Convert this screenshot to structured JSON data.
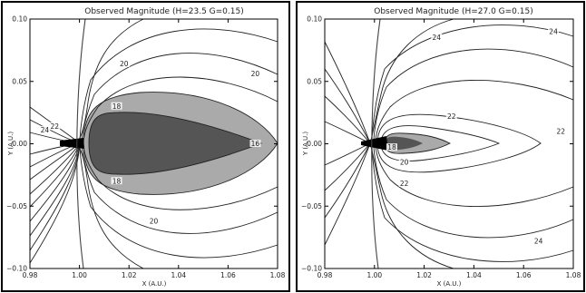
{
  "chart_data": [
    {
      "type": "contour",
      "title": "Observed Magnitude (H=23.5  G=0.15)",
      "xlabel": "X (A.U.)",
      "ylabel": "Y (A.U.)",
      "xlim": [
        0.98,
        1.08
      ],
      "ylim": [
        -0.1,
        0.1
      ],
      "x_ticks": [
        "0.98",
        "1.00",
        "1.02",
        "1.04",
        "1.06",
        "1.08"
      ],
      "y_ticks": [
        "0.10",
        "0.05",
        "0.00",
        "−0.05",
        "−0.10"
      ],
      "contour_labels": [
        {
          "text": "20",
          "x": 1.018,
          "y": 0.064
        },
        {
          "text": "20",
          "x": 1.071,
          "y": 0.056
        },
        {
          "text": "18",
          "x": 1.015,
          "y": 0.03
        },
        {
          "text": "18",
          "x": 1.015,
          "y": -0.03
        },
        {
          "text": "16",
          "x": 1.071,
          "y": 0.0
        },
        {
          "text": "20",
          "x": 1.03,
          "y": -0.062
        },
        {
          "text": "22",
          "x": 0.99,
          "y": 0.014
        },
        {
          "text": "24",
          "x": 0.986,
          "y": 0.011
        }
      ],
      "shading": [
        {
          "range": "< 16",
          "color": "#555555"
        },
        {
          "range": "16 - 18",
          "color": "#aaaaaa"
        }
      ]
    },
    {
      "type": "contour",
      "title": "Observed Magnitude (H=27.0  G=0.15)",
      "xlabel": "X (A.U.)",
      "ylabel": "Y (A.U.)",
      "xlim": [
        0.98,
        1.08
      ],
      "ylim": [
        -0.1,
        0.1
      ],
      "x_ticks": [
        "0.98",
        "1.00",
        "1.02",
        "1.04",
        "1.06",
        "1.08"
      ],
      "y_ticks": [
        "0.10",
        "0.05",
        "0.00",
        "−0.05",
        "−0.10"
      ],
      "contour_labels": [
        {
          "text": "24",
          "x": 1.025,
          "y": 0.085
        },
        {
          "text": "24",
          "x": 1.072,
          "y": 0.09
        },
        {
          "text": "22",
          "x": 1.031,
          "y": 0.022
        },
        {
          "text": "22",
          "x": 1.075,
          "y": 0.01
        },
        {
          "text": "20",
          "x": 1.012,
          "y": -0.015
        },
        {
          "text": "22",
          "x": 1.012,
          "y": -0.032
        },
        {
          "text": "24",
          "x": 1.066,
          "y": -0.078
        },
        {
          "text": "18",
          "x": 1.007,
          "y": -0.003
        }
      ],
      "shading": [
        {
          "range": "< 18",
          "color": "#555555"
        },
        {
          "range": "18 - 20",
          "color": "#aaaaaa"
        }
      ]
    }
  ]
}
